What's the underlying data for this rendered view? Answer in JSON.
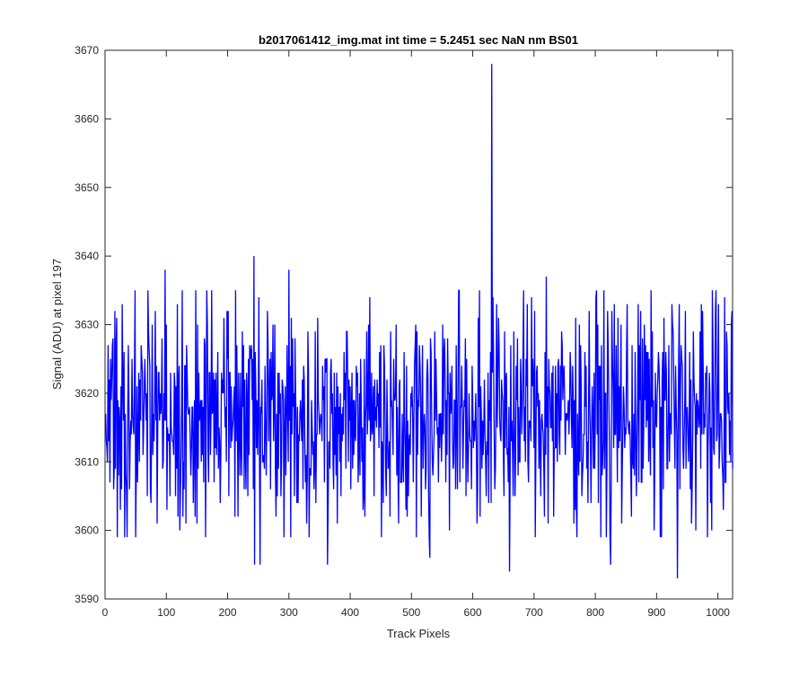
{
  "chart_data": {
    "type": "line",
    "title": "b2017061412_img.mat int time = 5.2451 sec  NaN nm BS01",
    "xlabel": "Track Pixels",
    "ylabel": "Signal (ADU) at pixel 197",
    "xlim": [
      0,
      1024
    ],
    "ylim": [
      3590,
      3670
    ],
    "xticks": [
      0,
      100,
      200,
      300,
      400,
      500,
      600,
      700,
      800,
      900,
      1000
    ],
    "yticks": [
      3590,
      3600,
      3610,
      3620,
      3630,
      3640,
      3650,
      3660,
      3670
    ],
    "grid": false,
    "legend": "none",
    "line_color": "#0000ff",
    "series": [
      {
        "x_start": 1,
        "x_step": 1,
        "values_note_keypoints": "approximate trace; notable features listed in keypoints",
        "keypoints": [
          {
            "x": 1,
            "y": 3617
          },
          {
            "x": 5,
            "y": 3627
          },
          {
            "x": 25,
            "y": 3603
          },
          {
            "x": 28,
            "y": 3633
          },
          {
            "x": 98,
            "y": 3638
          },
          {
            "x": 101,
            "y": 3603
          },
          {
            "x": 150,
            "y": 3601
          },
          {
            "x": 243,
            "y": 3640
          },
          {
            "x": 244,
            "y": 3595
          },
          {
            "x": 253,
            "y": 3595
          },
          {
            "x": 300,
            "y": 3638
          },
          {
            "x": 333,
            "y": 3599
          },
          {
            "x": 363,
            "y": 3595
          },
          {
            "x": 530,
            "y": 3596
          },
          {
            "x": 631,
            "y": 3668
          },
          {
            "x": 660,
            "y": 3594
          },
          {
            "x": 720,
            "y": 3637
          },
          {
            "x": 825,
            "y": 3595
          },
          {
            "x": 925,
            "y": 3633
          },
          {
            "x": 934,
            "y": 3593
          },
          {
            "x": 1024,
            "y": 3609
          }
        ],
        "mean": 3617,
        "noise_range": [
          3603,
          3631
        ]
      }
    ]
  }
}
